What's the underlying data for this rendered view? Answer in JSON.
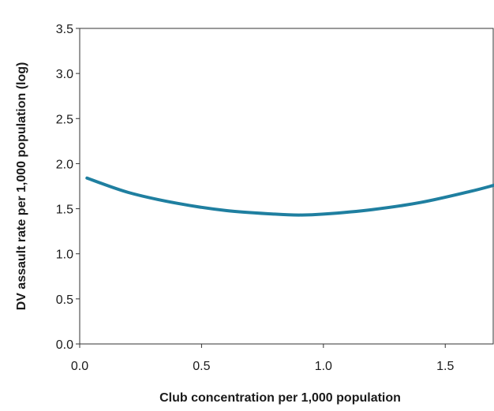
{
  "chart_data": {
    "type": "line",
    "title": "",
    "xlabel": "Club concentration per 1,000 population",
    "ylabel": "DV assault rate  per 1,000 population  (log)",
    "xlim": [
      0.0,
      1.7
    ],
    "ylim": [
      0.0,
      3.5
    ],
    "x_ticks": [
      "0.0",
      "0.5",
      "1.0",
      "1.5"
    ],
    "y_ticks": [
      "0.0",
      "0.5",
      "1.0",
      "1.5",
      "2.0",
      "2.5",
      "3.0",
      "3.5"
    ],
    "grid": false,
    "legend": "none",
    "series": [
      {
        "color": "#1f7fa0",
        "x": [
          0.03,
          0.2,
          0.4,
          0.6,
          0.8,
          0.9,
          1.0,
          1.2,
          1.4,
          1.6,
          1.7
        ],
        "y": [
          1.84,
          1.68,
          1.56,
          1.48,
          1.44,
          1.43,
          1.44,
          1.49,
          1.57,
          1.69,
          1.76
        ]
      }
    ]
  }
}
